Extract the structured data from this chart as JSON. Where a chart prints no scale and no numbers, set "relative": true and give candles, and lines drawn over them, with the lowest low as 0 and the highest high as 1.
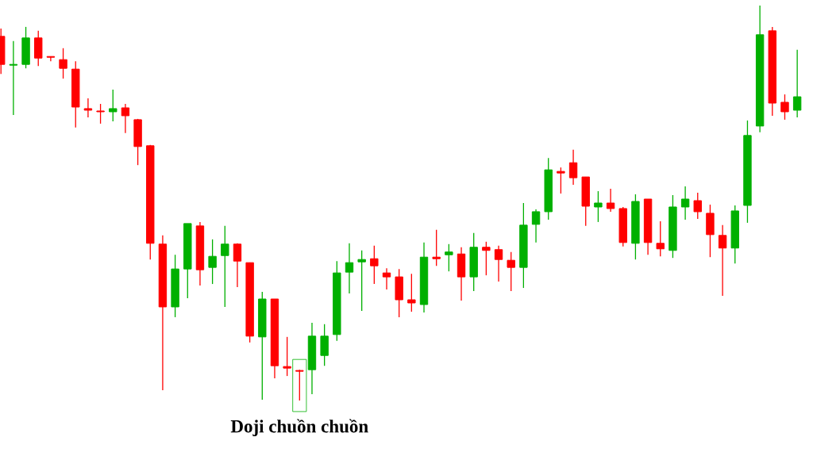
{
  "chart_data": {
    "type": "candlestick",
    "relative": true,
    "categories": [
      null,
      null,
      null,
      null,
      null,
      null,
      null,
      null,
      null,
      null,
      null,
      null,
      null,
      null,
      null,
      null,
      null,
      null,
      null,
      null,
      null,
      null,
      null,
      null,
      null,
      null,
      null,
      null,
      null,
      null,
      null,
      null,
      null,
      null,
      null,
      null,
      null,
      null,
      null,
      null,
      null,
      null,
      null,
      null,
      null,
      null,
      null,
      null,
      null,
      null,
      null,
      null,
      null,
      null,
      null,
      null,
      null,
      null,
      null,
      null,
      null,
      null,
      null,
      null,
      null
    ],
    "ohlc": [
      [
        0.922,
        0.942,
        0.827,
        0.851
      ],
      [
        0.849,
        0.91,
        0.723,
        0.851
      ],
      [
        0.851,
        0.946,
        0.841,
        0.918
      ],
      [
        0.918,
        0.936,
        0.847,
        0.867
      ],
      [
        0.871,
        0.871,
        0.859,
        0.869
      ],
      [
        0.863,
        0.892,
        0.815,
        0.841
      ],
      [
        0.839,
        0.859,
        0.691,
        0.743
      ],
      [
        0.739,
        0.765,
        0.717,
        0.735
      ],
      [
        0.733,
        0.751,
        0.701,
        0.731
      ],
      [
        0.731,
        0.787,
        0.707,
        0.739
      ],
      [
        0.741,
        0.751,
        0.677,
        0.721
      ],
      [
        0.711,
        0.713,
        0.596,
        0.643
      ],
      [
        0.645,
        0.647,
        0.357,
        0.398
      ],
      [
        0.396,
        0.418,
        0.026,
        0.237
      ],
      [
        0.237,
        0.369,
        0.211,
        0.333
      ],
      [
        0.333,
        0.448,
        0.259,
        0.448
      ],
      [
        0.442,
        0.452,
        0.291,
        0.331
      ],
      [
        0.337,
        0.408,
        0.295,
        0.365
      ],
      [
        0.367,
        0.442,
        0.237,
        0.396
      ],
      [
        0.396,
        0.398,
        0.287,
        0.353
      ],
      [
        0.349,
        0.349,
        0.147,
        0.163
      ],
      [
        0.161,
        0.275,
        0.002,
        0.257
      ],
      [
        0.257,
        0.257,
        0.056,
        0.088
      ],
      [
        0.086,
        0.161,
        0.062,
        0.082
      ],
      [
        0.076,
        0.078,
        0,
        0.074
      ],
      [
        0.078,
        0.197,
        0.016,
        0.163
      ],
      [
        0.114,
        0.193,
        0.088,
        0.163
      ],
      [
        0.167,
        0.353,
        0.151,
        0.323
      ],
      [
        0.325,
        0.398,
        0.271,
        0.349
      ],
      [
        0.351,
        0.38,
        0.227,
        0.357
      ],
      [
        0.359,
        0.392,
        0.295,
        0.341
      ],
      [
        0.323,
        0.335,
        0.281,
        0.313
      ],
      [
        0.313,
        0.333,
        0.211,
        0.255
      ],
      [
        0.255,
        0.321,
        0.225,
        0.247
      ],
      [
        0.243,
        0.4,
        0.223,
        0.363
      ],
      [
        0.363,
        0.432,
        0.341,
        0.359
      ],
      [
        0.369,
        0.396,
        0.327,
        0.376
      ],
      [
        0.371,
        0.388,
        0.253,
        0.313
      ],
      [
        0.313,
        0.424,
        0.277,
        0.388
      ],
      [
        0.388,
        0.402,
        0.317,
        0.38
      ],
      [
        0.382,
        0.392,
        0.301,
        0.357
      ],
      [
        0.355,
        0.376,
        0.277,
        0.337
      ],
      [
        0.337,
        0.5,
        0.285,
        0.444
      ],
      [
        0.446,
        0.484,
        0.4,
        0.478
      ],
      [
        0.478,
        0.614,
        0.458,
        0.584
      ],
      [
        0.58,
        0.59,
        0.524,
        0.576
      ],
      [
        0.602,
        0.635,
        0.546,
        0.564
      ],
      [
        0.566,
        0.566,
        0.442,
        0.492
      ],
      [
        0.49,
        0.53,
        0.452,
        0.5
      ],
      [
        0.5,
        0.536,
        0.478,
        0.486
      ],
      [
        0.486,
        0.49,
        0.39,
        0.4
      ],
      [
        0.398,
        0.522,
        0.357,
        0.504
      ],
      [
        0.51,
        0.51,
        0.369,
        0.4
      ],
      [
        0.398,
        0.454,
        0.365,
        0.384
      ],
      [
        0.38,
        0.52,
        0.361,
        0.49
      ],
      [
        0.49,
        0.542,
        0.458,
        0.51
      ],
      [
        0.506,
        0.526,
        0.46,
        0.478
      ],
      [
        0.474,
        0.496,
        0.363,
        0.42
      ],
      [
        0.418,
        0.444,
        0.265,
        0.386
      ],
      [
        0.386,
        0.494,
        0.347,
        0.48
      ],
      [
        0.494,
        0.709,
        0.45,
        0.671
      ],
      [
        0.695,
        1,
        0.679,
        0.926
      ],
      [
        0.936,
        0.946,
        0.721,
        0.753
      ],
      [
        0.755,
        0.775,
        0.711,
        0.731
      ],
      [
        0.735,
        0.888,
        0.717,
        0.769
      ]
    ],
    "colors": [
      "#ff0000",
      "#00b000",
      "#00b000",
      "#ff0000",
      "#ff0000",
      "#ff0000",
      "#ff0000",
      "#ff0000",
      "#ff0000",
      "#00b000",
      "#ff0000",
      "#ff0000",
      "#ff0000",
      "#ff0000",
      "#00b000",
      "#00b000",
      "#ff0000",
      "#00b000",
      "#00b000",
      "#ff0000",
      "#ff0000",
      "#00b000",
      "#ff0000",
      "#ff0000",
      "#ff0000",
      "#00b000",
      "#00b000",
      "#00b000",
      "#00b000",
      "#00b000",
      "#ff0000",
      "#ff0000",
      "#ff0000",
      "#ff0000",
      "#00b000",
      "#ff0000",
      "#00b000",
      "#ff0000",
      "#00b000",
      "#ff0000",
      "#ff0000",
      "#ff0000",
      "#00b000",
      "#00b000",
      "#00b000",
      "#ff0000",
      "#ff0000",
      "#ff0000",
      "#00b000",
      "#ff0000",
      "#ff0000",
      "#00b000",
      "#ff0000",
      "#ff0000",
      "#00b000",
      "#00b000",
      "#ff0000",
      "#ff0000",
      "#ff0000",
      "#00b000",
      "#00b000",
      "#00b000",
      "#ff0000",
      "#ff0000",
      "#00b000"
    ],
    "annotations": [
      "Doji chuồn chuồn"
    ]
  }
}
